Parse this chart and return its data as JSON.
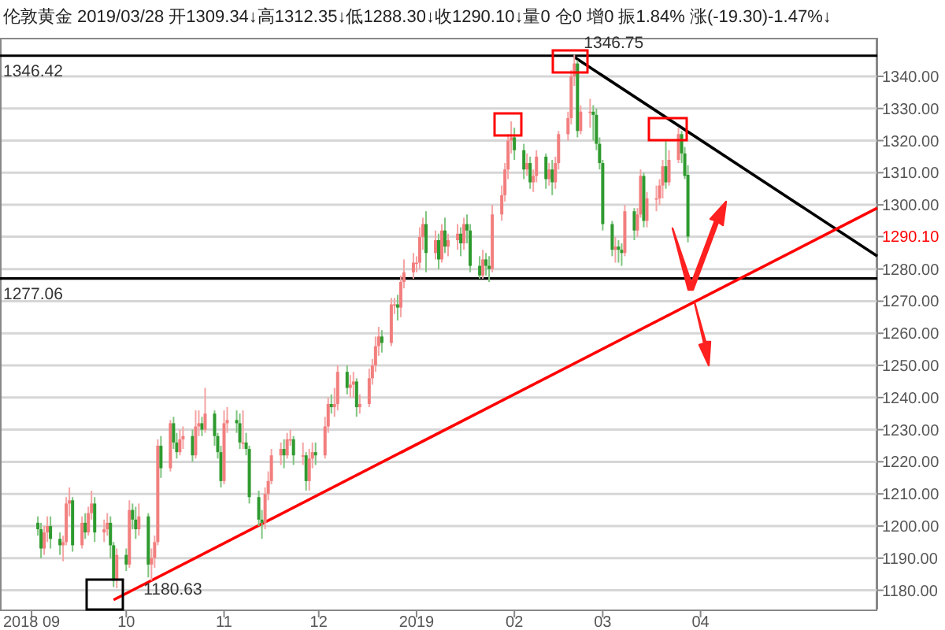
{
  "chart_data": {
    "type": "candlestick",
    "title": "伦敦黄金 2019/03/28 开1309.34↓高1312.35↓低1288.30↓收1290.10↓量0 仓0 增0 振1.84% 涨(-19.30)-1.47%↓",
    "x": [
      "2018-09-03",
      "2018-09-04",
      "2018-09-05",
      "2018-09-06",
      "2018-09-07",
      "2018-09-10",
      "2018-09-11",
      "2018-09-12",
      "2018-09-13",
      "2018-09-14",
      "2018-09-17",
      "2018-09-18",
      "2018-09-19",
      "2018-09-20",
      "2018-09-21",
      "2018-09-24",
      "2018-09-25",
      "2018-09-26",
      "2018-09-27",
      "2018-09-28",
      "2018-10-01",
      "2018-10-02",
      "2018-10-03",
      "2018-10-04",
      "2018-10-05",
      "2018-10-08",
      "2018-10-09",
      "2018-10-10",
      "2018-10-11",
      "2018-10-12",
      "2018-10-15",
      "2018-10-16",
      "2018-10-17",
      "2018-10-18",
      "2018-10-19",
      "2018-10-22",
      "2018-10-23",
      "2018-10-24",
      "2018-10-25",
      "2018-10-26",
      "2018-10-29",
      "2018-10-30",
      "2018-10-31",
      "2018-11-01",
      "2018-11-02",
      "2018-11-05",
      "2018-11-06",
      "2018-11-07",
      "2018-11-08",
      "2018-11-09",
      "2018-11-12",
      "2018-11-13",
      "2018-11-14",
      "2018-11-15",
      "2018-11-16",
      "2018-11-19",
      "2018-11-20",
      "2018-11-21",
      "2018-11-22",
      "2018-11-23",
      "2018-11-26",
      "2018-11-27",
      "2018-11-28",
      "2018-11-29",
      "2018-11-30",
      "2018-12-03",
      "2018-12-04",
      "2018-12-05",
      "2018-12-06",
      "2018-12-07",
      "2018-12-10",
      "2018-12-11",
      "2018-12-12",
      "2018-12-13",
      "2018-12-14",
      "2018-12-17",
      "2018-12-18",
      "2018-12-19",
      "2018-12-20",
      "2018-12-21",
      "2018-12-24",
      "2018-12-25",
      "2018-12-26",
      "2018-12-27",
      "2018-12-28",
      "2018-12-31",
      "2019-01-01",
      "2019-01-02",
      "2019-01-03",
      "2019-01-04",
      "2019-01-07",
      "2019-01-08",
      "2019-01-09",
      "2019-01-10",
      "2019-01-11",
      "2019-01-14",
      "2019-01-15",
      "2019-01-16",
      "2019-01-17",
      "2019-01-18",
      "2019-01-21",
      "2019-01-22",
      "2019-01-23",
      "2019-01-24",
      "2019-01-25",
      "2019-01-28",
      "2019-01-29",
      "2019-01-30",
      "2019-01-31",
      "2019-02-01",
      "2019-02-04",
      "2019-02-05",
      "2019-02-06",
      "2019-02-07",
      "2019-02-08",
      "2019-02-11",
      "2019-02-12",
      "2019-02-13",
      "2019-02-14",
      "2019-02-15",
      "2019-02-18",
      "2019-02-19",
      "2019-02-20",
      "2019-02-21",
      "2019-02-22",
      "2019-02-25",
      "2019-02-26",
      "2019-02-27",
      "2019-02-28",
      "2019-03-01",
      "2019-03-04",
      "2019-03-05",
      "2019-03-06",
      "2019-03-07",
      "2019-03-08",
      "2019-03-11",
      "2019-03-12",
      "2019-03-13",
      "2019-03-14",
      "2019-03-15",
      "2019-03-18",
      "2019-03-19",
      "2019-03-20",
      "2019-03-21",
      "2019-03-22",
      "2019-03-25",
      "2019-03-26",
      "2019-03-27",
      "2019-03-28"
    ],
    "ohlc": [
      [
        1201,
        1203,
        1197,
        1199
      ],
      [
        1199,
        1201,
        1190,
        1193
      ],
      [
        1193,
        1200,
        1191,
        1198
      ],
      [
        1198,
        1203,
        1195,
        1200
      ],
      [
        1200,
        1203,
        1193,
        1196
      ],
      [
        1196,
        1198,
        1191,
        1194
      ],
      [
        1194,
        1197,
        1189,
        1195
      ],
      [
        1195,
        1209,
        1194,
        1207
      ],
      [
        1207,
        1212,
        1203,
        1208
      ],
      [
        1208,
        1209,
        1192,
        1194
      ],
      [
        1194,
        1203,
        1193,
        1201
      ],
      [
        1201,
        1204,
        1196,
        1198
      ],
      [
        1198,
        1206,
        1197,
        1204
      ],
      [
        1204,
        1211,
        1202,
        1207
      ],
      [
        1207,
        1209,
        1195,
        1198
      ],
      [
        1198,
        1202,
        1195,
        1199
      ],
      [
        1199,
        1204,
        1197,
        1201
      ],
      [
        1201,
        1203,
        1190,
        1194
      ],
      [
        1194,
        1195,
        1181,
        1183
      ],
      [
        1183,
        1193,
        1180.63,
        1191
      ],
      [
        1191,
        1193,
        1186,
        1188
      ],
      [
        1188,
        1208,
        1187,
        1205
      ],
      [
        1205,
        1207,
        1199,
        1202
      ],
      [
        1202,
        1206,
        1196,
        1199
      ],
      [
        1199,
        1207,
        1197,
        1203
      ],
      [
        1203,
        1204,
        1184,
        1188
      ],
      [
        1188,
        1193,
        1183,
        1190
      ],
      [
        1190,
        1197,
        1187,
        1195
      ],
      [
        1195,
        1227,
        1194,
        1225
      ],
      [
        1225,
        1228,
        1215,
        1218
      ],
      [
        1218,
        1233,
        1217,
        1232
      ],
      [
        1232,
        1234,
        1224,
        1226
      ],
      [
        1226,
        1229,
        1221,
        1223
      ],
      [
        1223,
        1230,
        1222,
        1227
      ],
      [
        1227,
        1231,
        1224,
        1228
      ],
      [
        1228,
        1230,
        1220,
        1222
      ],
      [
        1222,
        1236,
        1221,
        1231
      ],
      [
        1231,
        1236,
        1228,
        1232
      ],
      [
        1232,
        1234,
        1228,
        1230
      ],
      [
        1230,
        1243,
        1229,
        1235
      ],
      [
        1235,
        1236,
        1225,
        1228
      ],
      [
        1228,
        1229,
        1221,
        1223
      ],
      [
        1223,
        1225,
        1212,
        1214
      ],
      [
        1214,
        1236,
        1213,
        1232
      ],
      [
        1232,
        1237,
        1229,
        1233
      ],
      [
        1233,
        1236,
        1229,
        1232
      ],
      [
        1232,
        1235,
        1224,
        1226
      ],
      [
        1226,
        1236,
        1224,
        1226
      ],
      [
        1226,
        1229,
        1222,
        1224
      ],
      [
        1224,
        1225,
        1207,
        1209
      ],
      [
        1209,
        1211,
        1200,
        1202
      ],
      [
        1202,
        1205,
        1196,
        1201
      ],
      [
        1201,
        1212,
        1199,
        1210
      ],
      [
        1210,
        1217,
        1208,
        1214
      ],
      [
        1214,
        1224,
        1213,
        1222
      ],
      [
        1222,
        1226,
        1219,
        1224
      ],
      [
        1224,
        1227,
        1218,
        1222
      ],
      [
        1222,
        1229,
        1221,
        1227
      ],
      [
        1227,
        1230,
        1225,
        1227
      ],
      [
        1227,
        1228,
        1219,
        1222
      ],
      [
        1222,
        1226,
        1219,
        1222
      ],
      [
        1222,
        1223,
        1211,
        1214
      ],
      [
        1214,
        1224,
        1211,
        1221
      ],
      [
        1221,
        1226,
        1218,
        1223
      ],
      [
        1223,
        1226,
        1219,
        1222
      ],
      [
        1222,
        1234,
        1221,
        1231
      ],
      [
        1231,
        1240,
        1229,
        1238
      ],
      [
        1238,
        1241,
        1235,
        1237
      ],
      [
        1237,
        1243,
        1234,
        1238
      ],
      [
        1238,
        1250,
        1236,
        1248
      ],
      [
        1248,
        1250,
        1241,
        1243
      ],
      [
        1243,
        1247,
        1240,
        1244
      ],
      [
        1244,
        1248,
        1240,
        1245
      ],
      [
        1245,
        1246,
        1234,
        1237
      ],
      [
        1237,
        1241,
        1235,
        1238
      ],
      [
        1238,
        1249,
        1237,
        1246
      ],
      [
        1246,
        1252,
        1244,
        1250
      ],
      [
        1250,
        1259,
        1248,
        1256
      ],
      [
        1256,
        1262,
        1253,
        1259
      ],
      [
        1259,
        1261,
        1254,
        1257
      ],
      [
        1257,
        1271,
        1256,
        1269
      ],
      [
        1269,
        1271,
        1266,
        1269
      ],
      [
        1269,
        1272,
        1264,
        1268
      ],
      [
        1268,
        1278,
        1265,
        1276
      ],
      [
        1276,
        1283,
        1274,
        1279
      ],
      [
        1279,
        1285,
        1277,
        1282
      ],
      [
        1282,
        1284,
        1279,
        1282
      ],
      [
        1282,
        1293,
        1280,
        1290
      ],
      [
        1290,
        1296,
        1286,
        1294
      ],
      [
        1294,
        1298,
        1279,
        1285
      ],
      [
        1285,
        1292,
        1283,
        1289
      ],
      [
        1289,
        1291,
        1280,
        1283
      ],
      [
        1283,
        1294,
        1282,
        1292
      ],
      [
        1292,
        1296,
        1285,
        1287
      ],
      [
        1287,
        1291,
        1284,
        1289
      ],
      [
        1289,
        1294,
        1286,
        1291
      ],
      [
        1291,
        1293,
        1284,
        1288
      ],
      [
        1288,
        1296,
        1286,
        1294
      ],
      [
        1294,
        1297,
        1288,
        1292
      ],
      [
        1292,
        1294,
        1279,
        1281
      ],
      [
        1281,
        1284,
        1277,
        1278
      ],
      [
        1278,
        1286,
        1277,
        1283
      ],
      [
        1283,
        1285,
        1278,
        1281
      ],
      [
        1281,
        1284,
        1276,
        1280
      ],
      [
        1280,
        1300,
        1279,
        1297
      ],
      [
        1297,
        1306,
        1295,
        1303
      ],
      [
        1303,
        1313,
        1301,
        1311
      ],
      [
        1311,
        1322,
        1308,
        1320
      ],
      [
        1320,
        1326,
        1316,
        1321
      ],
      [
        1321,
        1324,
        1314,
        1317
      ],
      [
        1317,
        1319,
        1308,
        1311
      ],
      [
        1311,
        1316,
        1309,
        1313
      ],
      [
        1313,
        1315,
        1305,
        1307
      ],
      [
        1307,
        1311,
        1304,
        1309
      ],
      [
        1309,
        1317,
        1307,
        1315
      ],
      [
        1315,
        1316,
        1305,
        1308
      ],
      [
        1308,
        1313,
        1306,
        1311
      ],
      [
        1311,
        1314,
        1303,
        1307
      ],
      [
        1307,
        1315,
        1305,
        1313
      ],
      [
        1313,
        1323,
        1311,
        1322
      ],
      [
        1322,
        1329,
        1320,
        1327
      ],
      [
        1327,
        1342,
        1325,
        1340
      ],
      [
        1340,
        1346.75,
        1337,
        1344
      ],
      [
        1344,
        1345,
        1321,
        1323
      ],
      [
        1323,
        1331,
        1322,
        1329
      ],
      [
        1329,
        1333,
        1324,
        1329
      ],
      [
        1329,
        1331,
        1320,
        1328
      ],
      [
        1328,
        1330,
        1317,
        1319
      ],
      [
        1319,
        1321,
        1311,
        1313
      ],
      [
        1313,
        1314,
        1292,
        1294
      ],
      [
        1294,
        1295,
        1284,
        1286
      ],
      [
        1286,
        1290,
        1282,
        1287
      ],
      [
        1287,
        1289,
        1282,
        1286
      ],
      [
        1286,
        1288,
        1281,
        1285
      ],
      [
        1285,
        1300,
        1284,
        1298
      ],
      [
        1298,
        1299,
        1289,
        1292
      ],
      [
        1292,
        1299,
        1290,
        1297
      ],
      [
        1297,
        1311,
        1296,
        1309
      ],
      [
        1309,
        1310,
        1293,
        1295
      ],
      [
        1295,
        1304,
        1293,
        1302
      ],
      [
        1302,
        1306,
        1298,
        1302
      ],
      [
        1302,
        1308,
        1300,
        1306
      ],
      [
        1306,
        1314,
        1302,
        1312
      ],
      [
        1312,
        1320,
        1305,
        1307
      ],
      [
        1307,
        1317,
        1306,
        1314
      ],
      [
        1314,
        1324,
        1313,
        1322
      ],
      [
        1322,
        1323,
        1313,
        1316
      ],
      [
        1316,
        1318,
        1308,
        1309
      ],
      [
        1309.34,
        1312.35,
        1288.3,
        1290.1
      ]
    ],
    "series": [
      {
        "type": "line",
        "color": "#000000",
        "x": [
          "2019-02-20",
          "2019-05-27"
        ],
        "values": [
          1346,
          1284
        ]
      },
      {
        "type": "line",
        "color": "#ff0000",
        "x": [
          "2018-09-27",
          "2019-05-27"
        ],
        "values": [
          1177,
          1299
        ]
      }
    ],
    "ref_lines": [
      {
        "axis": "y",
        "value": 1346.42,
        "label": "1346.42",
        "color": "#000000"
      },
      {
        "axis": "y",
        "value": 1277.06,
        "label": "1277.06",
        "color": "#000000"
      }
    ],
    "annotations": [
      {
        "text": "1346.75",
        "x": "2019-02-20",
        "y": 1346.75
      },
      {
        "text": "1180.63",
        "x": "2018-09-28",
        "y": 1180.63
      }
    ],
    "xlim": [
      "2018-08-22",
      "2019-05-27"
    ],
    "xticks": [
      {
        "value": "2018-09-01",
        "label": "2018 09"
      },
      {
        "value": "2018-10-01",
        "label": "10"
      },
      {
        "value": "2018-11-01",
        "label": "11"
      },
      {
        "value": "2018-12-01",
        "label": "12"
      },
      {
        "value": "2019-01-01",
        "label": "2019"
      },
      {
        "value": "2019-02-01",
        "label": "02"
      },
      {
        "value": "2019-03-01",
        "label": "03"
      },
      {
        "value": "2019-04-01",
        "label": "04"
      }
    ],
    "ylim": [
      1174,
      1352
    ],
    "yticks": [
      {
        "value": 1180,
        "label": "1180.00"
      },
      {
        "value": 1190,
        "label": "1190.00"
      },
      {
        "value": 1200,
        "label": "1200.00"
      },
      {
        "value": 1210,
        "label": "1210.00"
      },
      {
        "value": 1220,
        "label": "1220.00"
      },
      {
        "value": 1230,
        "label": "1230.00"
      },
      {
        "value": 1240,
        "label": "1240.00"
      },
      {
        "value": 1250,
        "label": "1250.00"
      },
      {
        "value": 1260,
        "label": "1260.00"
      },
      {
        "value": 1270,
        "label": "1270.00"
      },
      {
        "value": 1280,
        "label": "1280.00"
      },
      {
        "value": 1290.1,
        "label": "1290.10"
      },
      {
        "value": 1300,
        "label": "1300.00"
      },
      {
        "value": 1310,
        "label": "1310.00"
      },
      {
        "value": 1320,
        "label": "1320.00"
      },
      {
        "value": 1330,
        "label": "1330.00"
      },
      {
        "value": 1340,
        "label": "1340.00"
      }
    ],
    "grid": "y"
  }
}
